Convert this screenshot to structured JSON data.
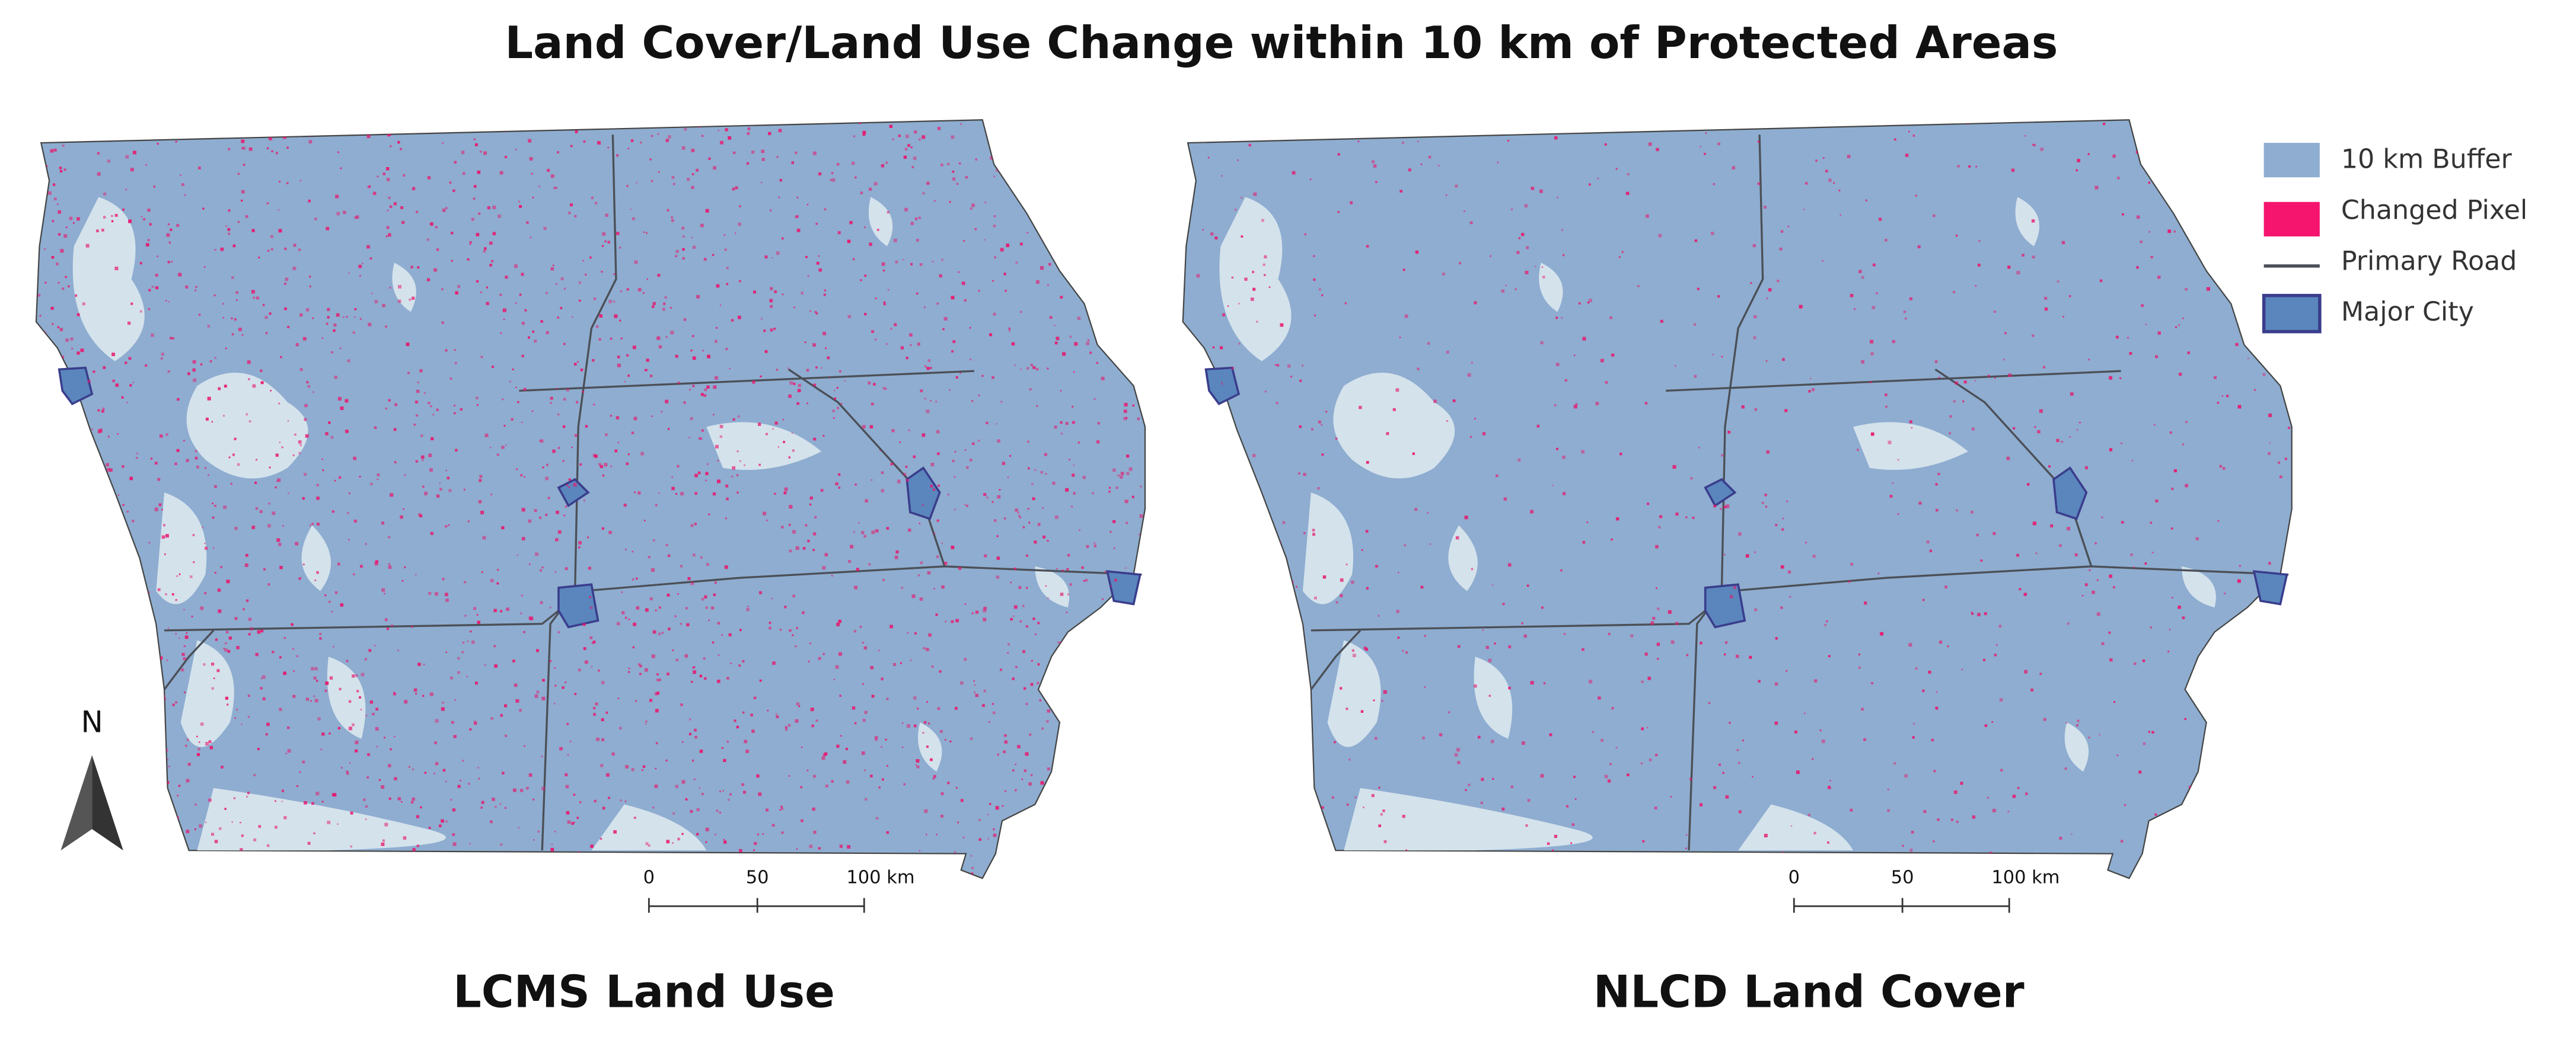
{
  "title": "Land Cover/Land Use Change within 10 km of Protected Areas",
  "panels": [
    {
      "title": "LCMS Land Use",
      "scale_bar": [
        "0",
        "50",
        "100 km"
      ]
    },
    {
      "title": "NLCD Land Cover",
      "scale_bar": [
        "0",
        "50",
        "100 km"
      ]
    }
  ],
  "legend": [
    {
      "label": "10 km Buffer"
    },
    {
      "label": "Changed Pixel"
    },
    {
      "label": "Primary Road"
    },
    {
      "label": "Major City"
    }
  ],
  "north_arrow": "N"
}
